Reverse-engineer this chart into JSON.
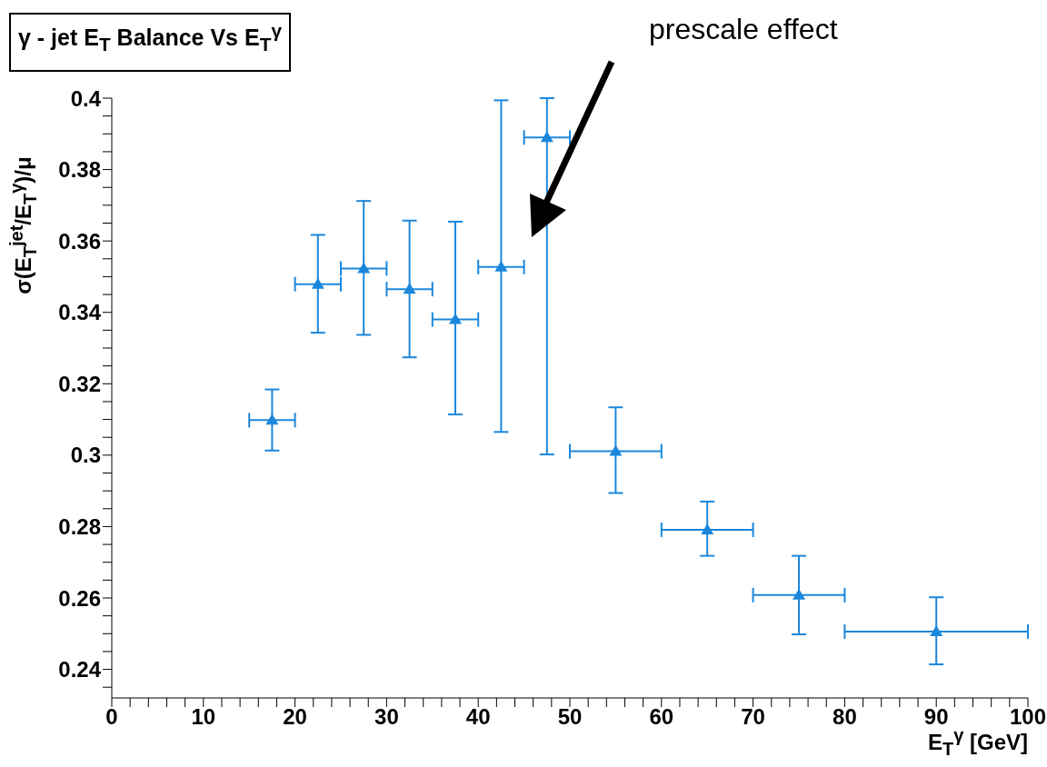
{
  "chart_data": {
    "type": "scatter",
    "title": "γ - jet E$_{T}$ Balance Vs  E$_{T}$$^{γ}$",
    "xlabel": "E$_{T}$$^{γ}$ [GeV]",
    "ylabel": "σ(E$_{T}$$^{jet}$/E$_{T}$$^{γ}$)/μ",
    "annotations": [
      "prescale effect"
    ],
    "x": [
      17.5,
      22.5,
      27.5,
      32.5,
      37.5,
      42.5,
      47.5,
      55,
      65,
      75,
      90
    ],
    "values": [
      0.3098,
      0.3479,
      0.3523,
      0.3465,
      0.338,
      0.3527,
      0.389,
      0.3011,
      0.2791,
      0.2608,
      0.2506
    ],
    "errors": [
      [
        0.3013,
        0.3184
      ],
      [
        0.3343,
        0.3617
      ],
      [
        0.3337,
        0.3712
      ],
      [
        0.3274,
        0.3657
      ],
      [
        0.3114,
        0.3654
      ],
      [
        0.3065,
        0.3994
      ],
      [
        0.3002,
        0.4
      ],
      [
        0.2894,
        0.3134
      ],
      [
        0.2718,
        0.287
      ],
      [
        0.2498,
        0.2718
      ],
      [
        0.2414,
        0.2602
      ]
    ],
    "xerrors": [
      2.5,
      2.5,
      2.5,
      2.5,
      2.5,
      2.5,
      2.5,
      5,
      5,
      5,
      10
    ],
    "color": "#1b87dc",
    "marker": "triangle",
    "xlim": [
      0,
      100
    ],
    "ylim": [
      0.232,
      0.4
    ],
    "xticks": [
      0,
      {
        "value": 2,
        "label": null
      },
      {
        "value": 4,
        "label": null
      },
      {
        "value": 6,
        "label": null
      },
      {
        "value": 8,
        "label": null
      },
      10,
      {
        "value": 12,
        "label": null
      },
      {
        "value": 14,
        "label": null
      },
      {
        "value": 16,
        "label": null
      },
      {
        "value": 18,
        "label": null
      },
      20,
      {
        "value": 22,
        "label": null
      },
      {
        "value": 24,
        "label": null
      },
      {
        "value": 26,
        "label": null
      },
      {
        "value": 28,
        "label": null
      },
      30,
      {
        "value": 32,
        "label": null
      },
      {
        "value": 34,
        "label": null
      },
      {
        "value": 36,
        "label": null
      },
      {
        "value": 38,
        "label": null
      },
      40,
      {
        "value": 42,
        "label": null
      },
      {
        "value": 44,
        "label": null
      },
      {
        "value": 46,
        "label": null
      },
      {
        "value": 48,
        "label": null
      },
      50,
      {
        "value": 52,
        "label": null
      },
      {
        "value": 54,
        "label": null
      },
      {
        "value": 56,
        "label": null
      },
      {
        "value": 58,
        "label": null
      },
      60,
      {
        "value": 62,
        "label": null
      },
      {
        "value": 64,
        "label": null
      },
      {
        "value": 66,
        "label": null
      },
      {
        "value": 68,
        "label": null
      },
      70,
      {
        "value": 72,
        "label": null
      },
      {
        "value": 74,
        "label": null
      },
      {
        "value": 76,
        "label": null
      },
      {
        "value": 78,
        "label": null
      },
      80,
      {
        "value": 82,
        "label": null
      },
      {
        "value": 84,
        "label": null
      },
      {
        "value": 86,
        "label": null
      },
      {
        "value": 88,
        "label": null
      },
      90,
      {
        "value": 92,
        "label": null
      },
      {
        "value": 94,
        "label": null
      },
      {
        "value": 96,
        "label": null
      },
      {
        "value": 98,
        "label": null
      },
      100
    ],
    "yticks": [
      {
        "value": 0.235,
        "label": null
      },
      0.24,
      {
        "value": 0.245,
        "label": null
      },
      {
        "value": 0.25,
        "label": null
      },
      {
        "value": 0.255,
        "label": null
      },
      0.26,
      {
        "value": 0.265,
        "label": null
      },
      {
        "value": 0.27,
        "label": null
      },
      {
        "value": 0.275,
        "label": null
      },
      0.28,
      {
        "value": 0.285,
        "label": null
      },
      {
        "value": 0.29,
        "label": null
      },
      {
        "value": 0.295,
        "label": null
      },
      0.3,
      {
        "value": 0.305,
        "label": null
      },
      {
        "value": 0.31,
        "label": null
      },
      {
        "value": 0.315,
        "label": null
      },
      0.32,
      {
        "value": 0.325,
        "label": null
      },
      {
        "value": 0.33,
        "label": null
      },
      {
        "value": 0.335,
        "label": null
      },
      0.34,
      {
        "value": 0.345,
        "label": null
      },
      {
        "value": 0.35,
        "label": null
      },
      {
        "value": 0.355,
        "label": null
      },
      0.36,
      {
        "value": 0.365,
        "label": null
      },
      {
        "value": 0.37,
        "label": null
      },
      {
        "value": 0.375,
        "label": null
      },
      0.38,
      {
        "value": 0.385,
        "label": null
      },
      {
        "value": 0.39,
        "label": null
      },
      {
        "value": 0.395,
        "label": null
      },
      0.4
    ],
    "grid": false,
    "legend": false
  }
}
